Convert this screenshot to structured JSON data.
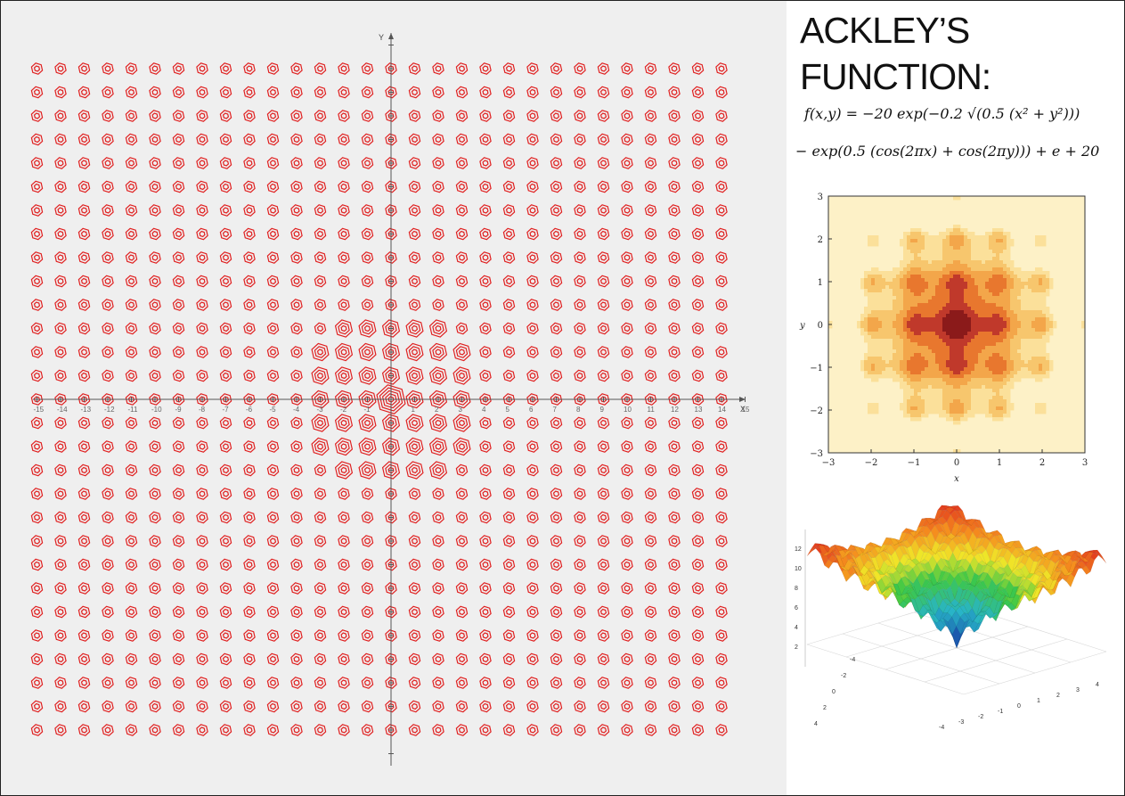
{
  "title": {
    "line1": "ACKLEY’S",
    "line2": "FUNCTION:"
  },
  "formula": {
    "line1": "f(x,y) = −20 exp(−0.2 √(0.5 (x² + y²)))",
    "line2": "− exp(0.5 (cos(2πx) + cos(2πy))) + e + 20"
  },
  "colors": {
    "contour_red": "#e02020",
    "left_bg": "#efefef",
    "axis": "#555555"
  },
  "chart_data": [
    {
      "id": "main-contour",
      "type": "heatmap",
      "function": "ackley",
      "xlabel": "X",
      "ylabel": "Y",
      "xlim": [
        -15,
        15
      ],
      "ylim": [
        -15,
        15
      ],
      "x_ticks": [
        -15,
        -14,
        -13,
        -12,
        -11,
        -10,
        -9,
        -8,
        -7,
        -6,
        -5,
        -4,
        -3,
        -2,
        -1,
        0,
        1,
        2,
        3,
        4,
        5,
        6,
        7,
        8,
        9,
        10,
        11,
        12,
        13,
        14,
        15
      ],
      "x_tick_labels": [
        "-15",
        "-14",
        "-13",
        "-12",
        "-11",
        "-10",
        "-9",
        "-8",
        "-7",
        "-6",
        "-5",
        "-4",
        "-3",
        "-2",
        "-1",
        "",
        "1",
        "2",
        "3",
        "4",
        "5",
        "6",
        "7",
        "8",
        "9",
        "10",
        "11",
        "12",
        "13",
        "14",
        "15"
      ],
      "contour_color": "#e02020",
      "grid": false
    },
    {
      "id": "small-contour",
      "type": "heatmap",
      "function": "ackley",
      "xlabel": "x",
      "ylabel": "y",
      "xlim": [
        -3,
        3
      ],
      "ylim": [
        -3,
        3
      ],
      "x_ticks": [
        -3,
        -2,
        -1,
        0,
        1,
        2,
        3
      ],
      "y_ticks": [
        -3,
        -2,
        -1,
        0,
        1,
        2,
        3
      ],
      "x_tick_labels": [
        "−3",
        "−2",
        "−1",
        "0",
        "1",
        "2",
        "3"
      ],
      "y_tick_labels": [
        "−3",
        "−2",
        "−1",
        "0",
        "1",
        "2",
        "3"
      ],
      "colormap": [
        "#8b1a1a",
        "#c0392b",
        "#e8772e",
        "#f3a64a",
        "#f7c66d",
        "#fbe09a",
        "#fdf1c7"
      ],
      "grid": false
    },
    {
      "id": "surface",
      "type": "area",
      "function": "ackley",
      "xlim": [
        -4,
        4
      ],
      "ylim": [
        -4,
        4
      ],
      "zlim": [
        0,
        14
      ],
      "z_tick_labels": [
        "2",
        "4",
        "6",
        "8",
        "10",
        "12"
      ],
      "x_tick_labels": [
        "-4",
        "-3",
        "-2",
        "-1",
        "0",
        "1",
        "2",
        "3",
        "4"
      ],
      "y_tick_labels": [
        "-4",
        "-2",
        "0",
        "2",
        "4"
      ]
    }
  ]
}
